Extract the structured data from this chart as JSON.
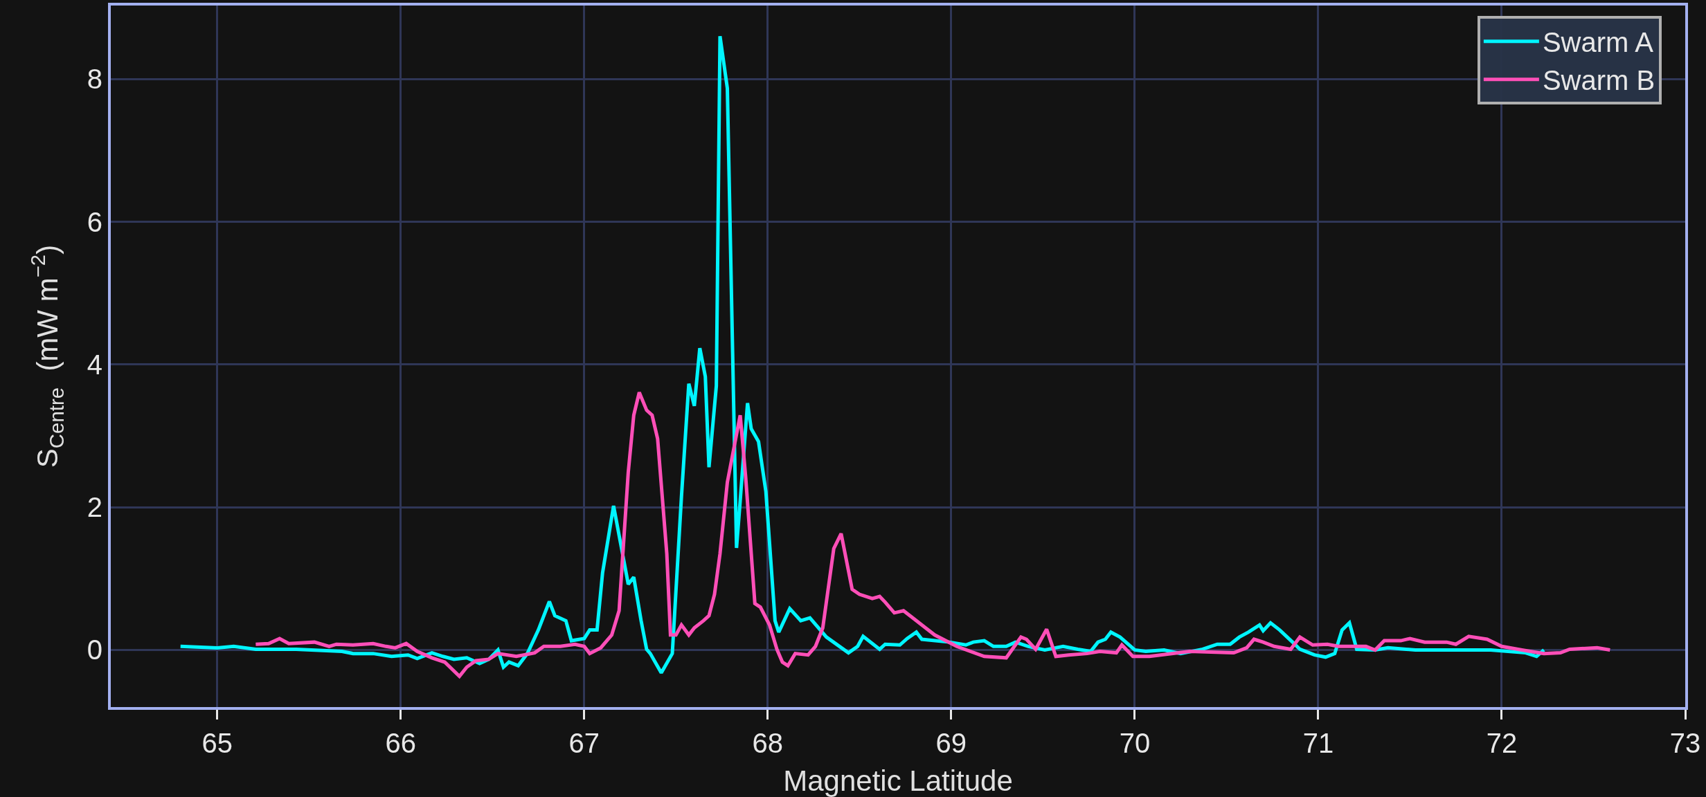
{
  "chart_data": {
    "type": "line",
    "xlabel": "Magnetic Latitude",
    "ylabel": "S$_{Centre}$  (mW m$^{−2}$)",
    "xlim": [
      64.42,
      73
    ],
    "xticks": [
      65,
      66,
      67,
      68,
      69,
      70,
      71,
      72,
      73
    ],
    "ylim": [
      -0.8,
      9.03
    ],
    "yticks": [
      0,
      2,
      4,
      6,
      8
    ],
    "grid": true,
    "legend": "top right",
    "line_style": "solid",
    "marker": "none",
    "series": [
      {
        "name": "Swarm A",
        "color": "#00f5ff",
        "x": [
          64.8,
          65.0,
          65.09,
          65.21,
          65.43,
          65.68,
          65.74,
          65.85,
          65.95,
          66.04,
          66.09,
          66.17,
          66.23,
          66.29,
          66.36,
          66.43,
          66.48,
          66.53,
          66.56,
          66.59,
          66.64,
          66.69,
          66.75,
          66.81,
          66.84,
          66.9,
          66.93,
          67.0,
          67.03,
          67.07,
          67.1,
          67.16,
          67.24,
          67.27,
          67.31,
          67.34,
          67.36,
          67.42,
          67.48,
          67.53,
          67.57,
          67.6,
          67.63,
          67.66,
          67.68,
          67.72,
          67.74,
          67.78,
          67.83,
          67.85,
          67.89,
          67.91,
          67.95,
          67.99,
          68.04,
          68.06,
          68.12,
          68.18,
          68.23,
          68.32,
          68.44,
          68.49,
          68.52,
          68.61,
          68.64,
          68.72,
          68.76,
          68.81,
          68.84,
          68.99,
          69.08,
          69.12,
          69.18,
          69.23,
          69.3,
          69.35,
          69.42,
          69.51,
          69.61,
          69.69,
          69.76,
          69.8,
          69.84,
          69.87,
          69.92,
          70.0,
          70.06,
          70.16,
          70.25,
          70.37,
          70.45,
          70.52,
          70.57,
          70.62,
          70.68,
          70.7,
          70.74,
          70.79,
          70.86,
          70.9,
          70.98,
          71.04,
          71.09,
          71.13,
          71.17,
          71.21,
          71.31,
          71.38,
          71.53,
          71.77,
          71.94,
          72.13,
          72.19,
          72.23
        ],
        "values": [
          0.05,
          0.03,
          0.05,
          0.01,
          0.01,
          -0.02,
          -0.05,
          -0.05,
          -0.09,
          -0.07,
          -0.12,
          -0.04,
          -0.09,
          -0.13,
          -0.11,
          -0.19,
          -0.13,
          0,
          -0.24,
          -0.17,
          -0.22,
          -0.05,
          0.28,
          0.68,
          0.48,
          0.41,
          0.13,
          0.16,
          0.28,
          0.28,
          1.08,
          2.02,
          0.92,
          1.02,
          0.41,
          0.01,
          -0.05,
          -0.32,
          -0.05,
          2.15,
          3.73,
          3.42,
          4.23,
          3.83,
          2.56,
          3.7,
          8.6,
          7.87,
          1.43,
          2.09,
          3.46,
          3.1,
          2.92,
          2.22,
          0.41,
          0.25,
          0.58,
          0.41,
          0.45,
          0.18,
          -0.04,
          0.05,
          0.19,
          0.01,
          0.08,
          0.07,
          0.16,
          0.25,
          0.15,
          0.11,
          0.07,
          0.11,
          0.13,
          0.05,
          0.05,
          0.11,
          0.05,
          0,
          0.05,
          0.01,
          -0.02,
          0.11,
          0.15,
          0.25,
          0.18,
          0,
          -0.02,
          0,
          -0.05,
          0.01,
          0.08,
          0.08,
          0.18,
          0.25,
          0.35,
          0.27,
          0.38,
          0.28,
          0.11,
          0.01,
          -0.07,
          -0.1,
          -0.05,
          0.28,
          0.38,
          0.01,
          0,
          0.03,
          0,
          0,
          0,
          -0.04,
          -0.09,
          0
        ]
      },
      {
        "name": "Swarm B",
        "color": "#ff4fb8",
        "x": [
          65.21,
          65.28,
          65.34,
          65.39,
          65.53,
          65.61,
          65.65,
          65.74,
          65.85,
          65.92,
          65.97,
          66.03,
          66.09,
          66.17,
          66.24,
          66.32,
          66.36,
          66.41,
          66.48,
          66.53,
          66.63,
          66.73,
          66.78,
          66.87,
          66.95,
          67.0,
          67.03,
          67.09,
          67.15,
          67.19,
          67.24,
          67.27,
          67.3,
          67.34,
          67.37,
          67.4,
          67.45,
          67.47,
          67.5,
          67.53,
          67.57,
          67.6,
          67.65,
          67.68,
          67.71,
          67.74,
          67.78,
          67.85,
          67.88,
          67.93,
          67.96,
          68.01,
          68.05,
          68.08,
          68.11,
          68.15,
          68.22,
          68.26,
          68.3,
          68.36,
          68.4,
          68.46,
          68.5,
          68.57,
          68.61,
          68.64,
          68.69,
          68.74,
          68.79,
          68.86,
          68.91,
          69.03,
          69.18,
          69.3,
          69.38,
          69.41,
          69.46,
          69.52,
          69.57,
          69.64,
          69.74,
          69.81,
          69.9,
          69.93,
          69.99,
          70.08,
          70.3,
          70.54,
          70.61,
          70.65,
          70.7,
          70.76,
          70.85,
          70.9,
          70.97,
          71.05,
          71.11,
          71.26,
          71.31,
          71.36,
          71.45,
          71.5,
          71.58,
          71.7,
          71.75,
          71.82,
          71.92,
          72.0,
          72.11,
          72.23,
          72.32,
          72.37,
          72.52,
          72.59
        ],
        "values": [
          0.08,
          0.09,
          0.16,
          0.09,
          0.11,
          0.05,
          0.08,
          0.07,
          0.09,
          0.05,
          0.03,
          0.09,
          -0.02,
          -0.11,
          -0.17,
          -0.37,
          -0.24,
          -0.15,
          -0.13,
          -0.05,
          -0.09,
          -0.04,
          0.05,
          0.05,
          0.08,
          0.05,
          -0.05,
          0.03,
          0.21,
          0.55,
          2.49,
          3.29,
          3.61,
          3.36,
          3.29,
          2.96,
          1.35,
          0.21,
          0.21,
          0.35,
          0.21,
          0.31,
          0.41,
          0.48,
          0.78,
          1.35,
          2.35,
          3.29,
          2.42,
          0.65,
          0.6,
          0.35,
          0.01,
          -0.17,
          -0.22,
          -0.05,
          -0.07,
          0.05,
          0.31,
          1.42,
          1.63,
          0.85,
          0.78,
          0.72,
          0.75,
          0.67,
          0.52,
          0.55,
          0.45,
          0.31,
          0.21,
          0.05,
          -0.09,
          -0.11,
          0.18,
          0.15,
          0.01,
          0.29,
          -0.09,
          -0.07,
          -0.05,
          -0.02,
          -0.04,
          0.07,
          -0.09,
          -0.09,
          -0.02,
          -0.04,
          0.03,
          0.15,
          0.11,
          0.05,
          0.01,
          0.18,
          0.07,
          0.08,
          0.05,
          0.05,
          0,
          0.13,
          0.13,
          0.16,
          0.11,
          0.11,
          0.08,
          0.19,
          0.15,
          0.05,
          0,
          -0.05,
          -0.04,
          0.01,
          0.03,
          0
        ]
      }
    ]
  }
}
